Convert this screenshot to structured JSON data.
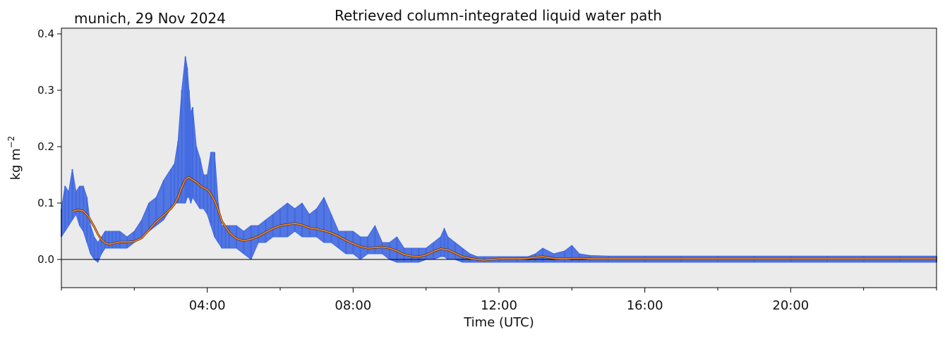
{
  "chart_data": {
    "type": "line",
    "title": "Retrieved column-integrated liquid water path",
    "subtitle": "munich, 29 Nov 2024",
    "xlabel": "Time (UTC)",
    "ylabel_main": "kg m",
    "ylabel_exp": "−2",
    "xlim_hours": [
      0,
      24
    ],
    "ylim": [
      -0.05,
      0.41
    ],
    "x_ticks": [
      {
        "hour": 4,
        "label": "04:00"
      },
      {
        "hour": 8,
        "label": "08:00"
      },
      {
        "hour": 12,
        "label": "12:00"
      },
      {
        "hour": 16,
        "label": "16:00"
      },
      {
        "hour": 20,
        "label": "20:00"
      }
    ],
    "x_minor_ticks_hours": [
      0,
      2,
      6,
      10,
      14,
      18,
      22,
      24
    ],
    "y_ticks": [
      {
        "value": 0.0,
        "label": "0.0"
      },
      {
        "value": 0.1,
        "label": "0.1"
      },
      {
        "value": 0.2,
        "label": "0.2"
      },
      {
        "value": 0.3,
        "label": "0.3"
      },
      {
        "value": 0.4,
        "label": "0.4"
      }
    ],
    "zero_line": true,
    "colors": {
      "background": "#ebebeb",
      "raw": "#4169e1",
      "smoothed": "#f08a3c",
      "zero": "#000000"
    },
    "series": [
      {
        "kind": "raw",
        "x_hours": [
          0.0,
          0.1,
          0.2,
          0.3,
          0.4,
          0.5,
          0.6,
          0.7,
          0.8,
          0.9,
          1.0,
          1.1,
          1.2,
          1.3,
          1.4,
          1.5,
          1.6,
          1.8,
          2.0,
          2.2,
          2.4,
          2.6,
          2.8,
          3.0,
          3.1,
          3.2,
          3.3,
          3.4,
          3.45,
          3.5,
          3.55,
          3.6,
          3.7,
          3.8,
          3.9,
          4.0,
          4.1,
          4.2,
          4.3,
          4.4,
          4.5,
          4.6,
          4.8,
          5.0,
          5.2,
          5.4,
          5.6,
          5.8,
          6.0,
          6.2,
          6.4,
          6.6,
          6.8,
          7.0,
          7.2,
          7.4,
          7.6,
          7.8,
          8.0,
          8.2,
          8.4,
          8.6,
          8.8,
          9.0,
          9.2,
          9.4,
          9.6,
          9.8,
          10.0,
          10.2,
          10.4,
          10.5,
          10.6,
          10.8,
          11.0,
          11.2,
          11.4,
          11.6,
          12.0,
          12.5,
          12.8,
          13.0,
          13.2,
          13.5,
          13.8,
          14.0,
          14.2,
          14.5,
          15.0,
          16.0,
          17.0,
          18.0,
          19.0,
          20.0,
          21.0,
          22.0,
          23.0,
          24.0
        ],
        "y_min": [
          0.04,
          0.05,
          0.06,
          0.07,
          0.08,
          0.06,
          0.05,
          0.03,
          0.01,
          0.0,
          -0.005,
          0.01,
          0.02,
          0.02,
          0.02,
          0.02,
          0.02,
          0.02,
          0.03,
          0.04,
          0.05,
          0.06,
          0.07,
          0.09,
          0.1,
          0.1,
          0.1,
          0.1,
          0.11,
          0.11,
          0.1,
          0.11,
          0.1,
          0.09,
          0.09,
          0.08,
          0.06,
          0.04,
          0.03,
          0.02,
          0.02,
          0.02,
          0.02,
          0.01,
          0.0,
          0.03,
          0.03,
          0.04,
          0.04,
          0.04,
          0.05,
          0.04,
          0.04,
          0.04,
          0.03,
          0.03,
          0.02,
          0.01,
          0.01,
          0.0,
          0.01,
          0.01,
          0.01,
          0.0,
          -0.005,
          -0.005,
          -0.005,
          -0.005,
          0.0,
          0.0,
          0.005,
          0.005,
          0.0,
          0.0,
          -0.005,
          -0.005,
          -0.005,
          -0.005,
          -0.005,
          -0.005,
          -0.005,
          -0.005,
          -0.005,
          -0.005,
          -0.005,
          -0.005,
          -0.005,
          -0.005,
          -0.005,
          -0.005,
          -0.005,
          -0.005,
          -0.005,
          -0.005,
          -0.005,
          -0.005,
          -0.005,
          -0.005
        ],
        "y_max": [
          0.09,
          0.13,
          0.12,
          0.16,
          0.12,
          0.13,
          0.13,
          0.11,
          0.06,
          0.04,
          0.03,
          0.04,
          0.05,
          0.05,
          0.05,
          0.05,
          0.05,
          0.04,
          0.05,
          0.07,
          0.1,
          0.11,
          0.14,
          0.16,
          0.17,
          0.21,
          0.3,
          0.36,
          0.34,
          0.3,
          0.26,
          0.27,
          0.2,
          0.18,
          0.15,
          0.15,
          0.19,
          0.19,
          0.1,
          0.06,
          0.06,
          0.06,
          0.06,
          0.05,
          0.06,
          0.06,
          0.07,
          0.08,
          0.09,
          0.1,
          0.09,
          0.1,
          0.08,
          0.09,
          0.11,
          0.08,
          0.05,
          0.05,
          0.05,
          0.04,
          0.04,
          0.06,
          0.03,
          0.03,
          0.04,
          0.02,
          0.02,
          0.02,
          0.02,
          0.03,
          0.04,
          0.055,
          0.04,
          0.03,
          0.02,
          0.01,
          0.005,
          0.005,
          0.005,
          0.005,
          0.005,
          0.01,
          0.02,
          0.01,
          0.015,
          0.025,
          0.01,
          0.007,
          0.006,
          0.006,
          0.006,
          0.006,
          0.006,
          0.006,
          0.006,
          0.006,
          0.006,
          0.006
        ]
      },
      {
        "kind": "smoothed",
        "x_hours": [
          0.3,
          0.45,
          0.6,
          0.75,
          0.9,
          1.0,
          1.1,
          1.2,
          1.3,
          1.4,
          1.6,
          1.8,
          2.0,
          2.2,
          2.4,
          2.6,
          2.8,
          3.0,
          3.1,
          3.2,
          3.3,
          3.4,
          3.5,
          3.6,
          3.7,
          3.8,
          3.9,
          4.0,
          4.1,
          4.2,
          4.3,
          4.4,
          4.6,
          4.8,
          5.0,
          5.2,
          5.4,
          5.6,
          5.8,
          6.0,
          6.2,
          6.4,
          6.6,
          6.8,
          7.0,
          7.2,
          7.4,
          7.6,
          7.8,
          8.0,
          8.2,
          8.4,
          8.6,
          8.8,
          9.0,
          9.2,
          9.4,
          9.6,
          9.8,
          10.0,
          10.2,
          10.4,
          10.6,
          10.8,
          11.0,
          11.2,
          11.4,
          11.6,
          12.0,
          12.5,
          12.8,
          13.0,
          13.2,
          13.5,
          13.8,
          14.0,
          14.3,
          14.6,
          15.0,
          16.0,
          18.0,
          20.0,
          22.0,
          24.0
        ],
        "y": [
          0.085,
          0.088,
          0.086,
          0.075,
          0.058,
          0.045,
          0.035,
          0.029,
          0.027,
          0.028,
          0.031,
          0.031,
          0.032,
          0.038,
          0.052,
          0.067,
          0.078,
          0.09,
          0.098,
          0.11,
          0.128,
          0.142,
          0.146,
          0.141,
          0.137,
          0.131,
          0.127,
          0.124,
          0.116,
          0.104,
          0.088,
          0.068,
          0.048,
          0.037,
          0.033,
          0.036,
          0.041,
          0.048,
          0.055,
          0.06,
          0.062,
          0.064,
          0.061,
          0.056,
          0.054,
          0.051,
          0.047,
          0.041,
          0.034,
          0.028,
          0.023,
          0.02,
          0.021,
          0.022,
          0.02,
          0.015,
          0.009,
          0.006,
          0.005,
          0.008,
          0.014,
          0.019,
          0.017,
          0.011,
          0.005,
          0.002,
          0.0,
          -0.001,
          0.001,
          0.001,
          0.002,
          0.004,
          0.005,
          0.002,
          0.001,
          0.002,
          0.002,
          0.001,
          0.001,
          0.001,
          0.001,
          0.001,
          0.001,
          0.001
        ]
      }
    ]
  }
}
